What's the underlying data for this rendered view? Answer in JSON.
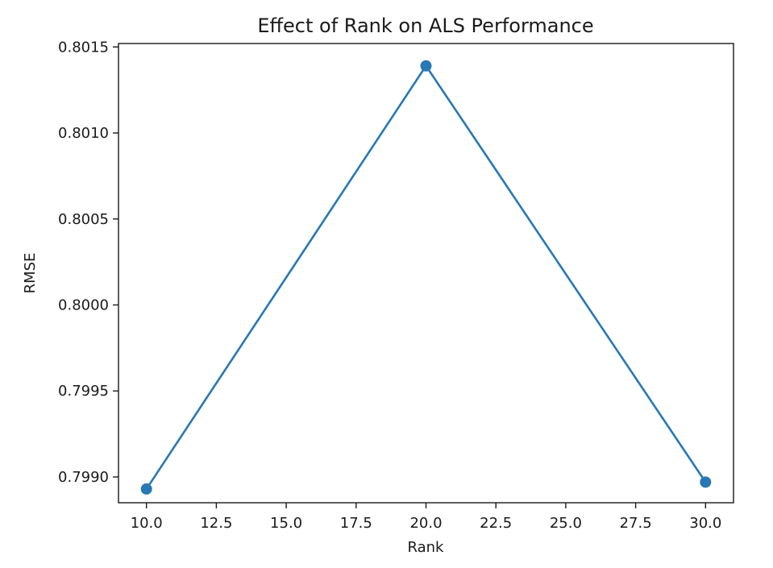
{
  "chart_data": {
    "type": "line",
    "title": "Effect of Rank on ALS Performance",
    "xlabel": "Rank",
    "ylabel": "RMSE",
    "xlim": [
      9.0,
      31.0
    ],
    "ylim": [
      0.79885,
      0.80152
    ],
    "xticks": [
      10.0,
      12.5,
      15.0,
      17.5,
      20.0,
      22.5,
      25.0,
      27.5,
      30.0
    ],
    "xtick_labels": [
      "10.0",
      "12.5",
      "15.0",
      "17.5",
      "20.0",
      "22.5",
      "25.0",
      "27.5",
      "30.0"
    ],
    "yticks": [
      0.799,
      0.7995,
      0.8,
      0.8005,
      0.801,
      0.8015
    ],
    "ytick_labels": [
      "0.7990",
      "0.7995",
      "0.8000",
      "0.8005",
      "0.8010",
      "0.8015"
    ],
    "grid": false,
    "series": [
      {
        "x": [
          10,
          20,
          30
        ],
        "y": [
          0.79893,
          0.80139,
          0.79897
        ],
        "color": "#2878b4",
        "marker": "circle"
      }
    ]
  }
}
